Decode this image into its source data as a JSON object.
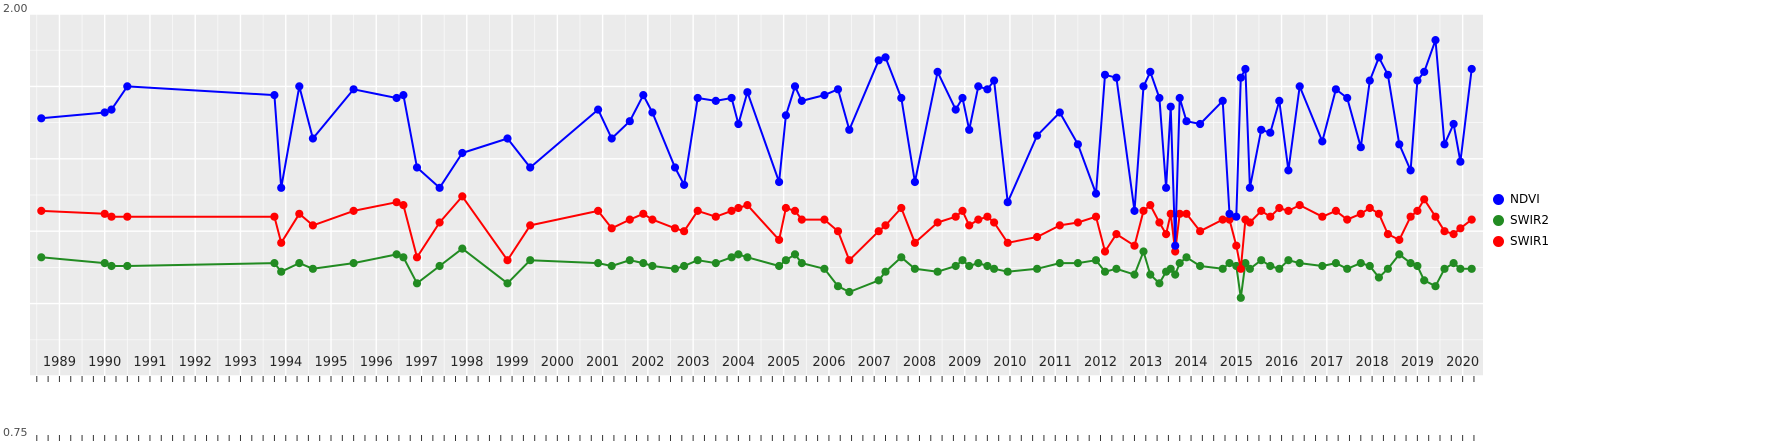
{
  "chart_data": {
    "type": "line",
    "title": "",
    "xlabel": "",
    "ylabel": "",
    "panel_bg": "#EBEBEB",
    "grid_color": "#FFFFFF",
    "tick_color": "#333333",
    "ylim": [
      0.75,
      2.0
    ],
    "xlim": [
      1988.35,
      2020.45
    ],
    "y_axis_visible_labels": [
      "2.00",
      "0.75"
    ],
    "x_ticks": [
      "1989",
      "1990",
      "1991",
      "1992",
      "1993",
      "1994",
      "1995",
      "1996",
      "1997",
      "1998",
      "1999",
      "2000",
      "2001",
      "2002",
      "2003",
      "2004",
      "2005",
      "2006",
      "2007",
      "2008",
      "2009",
      "2010",
      "2011",
      "2012",
      "2013",
      "2014",
      "2015",
      "2016",
      "2017",
      "2018",
      "2019",
      "2020"
    ],
    "legend_position": "right",
    "x": [
      1988.6,
      1990.0,
      1990.15,
      1990.5,
      1993.75,
      1993.9,
      1994.3,
      1994.6,
      1995.5,
      1996.45,
      1996.6,
      1996.9,
      1997.4,
      1997.9,
      1998.9,
      1999.4,
      2000.9,
      2001.2,
      2001.6,
      2001.9,
      2002.1,
      2002.6,
      2002.8,
      2003.1,
      2003.5,
      2003.85,
      2004.0,
      2004.2,
      2004.9,
      2005.05,
      2005.25,
      2005.4,
      2005.9,
      2006.2,
      2006.45,
      2007.1,
      2007.25,
      2007.6,
      2007.9,
      2008.4,
      2008.8,
      2008.95,
      2009.1,
      2009.3,
      2009.5,
      2009.65,
      2009.95,
      2010.6,
      2011.1,
      2011.5,
      2011.9,
      2012.1,
      2012.35,
      2012.75,
      2012.95,
      2013.1,
      2013.3,
      2013.45,
      2013.55,
      2013.65,
      2013.75,
      2013.9,
      2014.2,
      2014.7,
      2014.85,
      2015.0,
      2015.1,
      2015.2,
      2015.3,
      2015.55,
      2015.75,
      2015.95,
      2016.15,
      2016.4,
      2016.9,
      2017.2,
      2017.45,
      2017.75,
      2017.95,
      2018.15,
      2018.35,
      2018.6,
      2018.85,
      2019.0,
      2019.15,
      2019.4,
      2019.6,
      2019.8,
      2019.95,
      2020.2
    ],
    "series": [
      {
        "name": "NDVI",
        "color": "#0000FF",
        "values": [
          1.64,
          1.66,
          1.67,
          1.75,
          1.72,
          1.4,
          1.75,
          1.57,
          1.74,
          1.71,
          1.72,
          1.47,
          1.4,
          1.52,
          1.57,
          1.47,
          1.67,
          1.57,
          1.63,
          1.72,
          1.66,
          1.47,
          1.41,
          1.71,
          1.7,
          1.71,
          1.62,
          1.73,
          1.42,
          1.65,
          1.75,
          1.7,
          1.72,
          1.74,
          1.6,
          1.84,
          1.85,
          1.71,
          1.42,
          1.8,
          1.67,
          1.71,
          1.6,
          1.75,
          1.74,
          1.77,
          1.35,
          1.58,
          1.66,
          1.55,
          1.38,
          1.79,
          1.78,
          1.32,
          1.75,
          1.8,
          1.71,
          1.4,
          1.68,
          1.2,
          1.71,
          1.63,
          1.62,
          1.7,
          1.31,
          1.3,
          1.78,
          1.81,
          1.4,
          1.6,
          1.59,
          1.7,
          1.46,
          1.75,
          1.56,
          1.74,
          1.71,
          1.54,
          1.77,
          1.85,
          1.79,
          1.55,
          1.46,
          1.77,
          1.8,
          1.91,
          1.55,
          1.62,
          1.49,
          1.81
        ]
      },
      {
        "name": "SWIR2",
        "color": "#228B22",
        "values": [
          1.16,
          1.14,
          1.13,
          1.13,
          1.14,
          1.11,
          1.14,
          1.12,
          1.14,
          1.17,
          1.16,
          1.07,
          1.13,
          1.19,
          1.07,
          1.15,
          1.14,
          1.13,
          1.15,
          1.14,
          1.13,
          1.12,
          1.13,
          1.15,
          1.14,
          1.16,
          1.17,
          1.16,
          1.13,
          1.15,
          1.17,
          1.14,
          1.12,
          1.06,
          1.04,
          1.08,
          1.11,
          1.16,
          1.12,
          1.11,
          1.13,
          1.15,
          1.13,
          1.14,
          1.13,
          1.12,
          1.11,
          1.12,
          1.14,
          1.14,
          1.15,
          1.11,
          1.12,
          1.1,
          1.18,
          1.1,
          1.07,
          1.11,
          1.12,
          1.1,
          1.14,
          1.16,
          1.13,
          1.12,
          1.14,
          1.13,
          1.02,
          1.14,
          1.12,
          1.15,
          1.13,
          1.12,
          1.15,
          1.14,
          1.13,
          1.14,
          1.12,
          1.14,
          1.13,
          1.09,
          1.12,
          1.17,
          1.14,
          1.13,
          1.08,
          1.06,
          1.12,
          1.14,
          1.12,
          1.12
        ]
      },
      {
        "name": "SWIR1",
        "color": "#FF0000",
        "values": [
          1.32,
          1.31,
          1.3,
          1.3,
          1.3,
          1.21,
          1.31,
          1.27,
          1.32,
          1.35,
          1.34,
          1.16,
          1.28,
          1.37,
          1.15,
          1.27,
          1.32,
          1.26,
          1.29,
          1.31,
          1.29,
          1.26,
          1.25,
          1.32,
          1.3,
          1.32,
          1.33,
          1.34,
          1.22,
          1.33,
          1.32,
          1.29,
          1.29,
          1.25,
          1.15,
          1.25,
          1.27,
          1.33,
          1.21,
          1.28,
          1.3,
          1.32,
          1.27,
          1.29,
          1.3,
          1.28,
          1.21,
          1.23,
          1.27,
          1.28,
          1.3,
          1.18,
          1.24,
          1.2,
          1.32,
          1.34,
          1.28,
          1.24,
          1.31,
          1.18,
          1.31,
          1.31,
          1.25,
          1.29,
          1.29,
          1.2,
          1.12,
          1.29,
          1.28,
          1.32,
          1.3,
          1.33,
          1.32,
          1.34,
          1.3,
          1.32,
          1.29,
          1.31,
          1.33,
          1.31,
          1.24,
          1.22,
          1.3,
          1.32,
          1.36,
          1.3,
          1.25,
          1.24,
          1.26,
          1.29
        ]
      }
    ]
  }
}
